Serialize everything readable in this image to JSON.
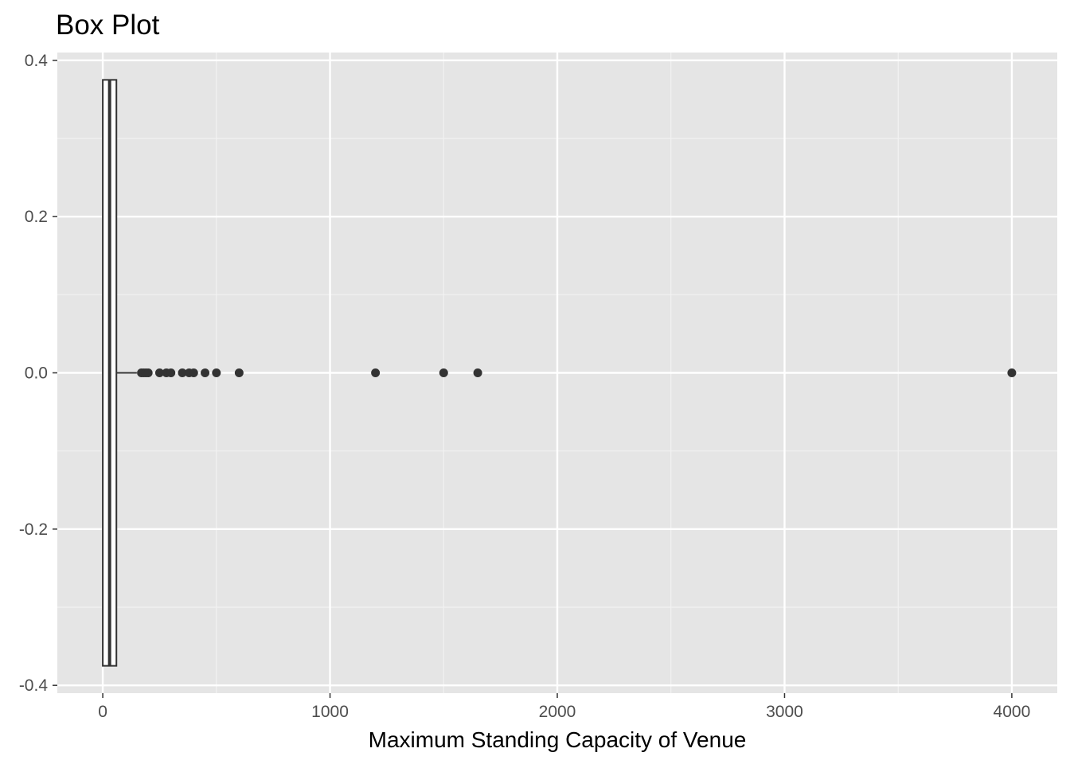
{
  "chart_data": {
    "type": "box",
    "title": "Box Plot",
    "xlabel": "Maximum Standing Capacity of Venue",
    "ylabel": "",
    "orientation": "horizontal",
    "xlim": [
      -200,
      4200
    ],
    "ylim": [
      -0.41,
      0.41
    ],
    "x_ticks": [
      0,
      1000,
      2000,
      3000,
      4000
    ],
    "x_tick_labels": [
      "0",
      "1000",
      "2000",
      "3000",
      "4000"
    ],
    "y_ticks": [
      -0.4,
      -0.2,
      0.0,
      0.2,
      0.4
    ],
    "y_tick_labels": [
      "-0.4",
      "-0.2",
      "0.0",
      "0.2",
      "0.4"
    ],
    "grid": true,
    "box": {
      "q1": 0,
      "median": 30,
      "q3": 60,
      "whisker_low": 0,
      "whisker_high": 150,
      "box_ymin": -0.375,
      "box_ymax": 0.375
    },
    "outliers": [
      170,
      180,
      190,
      200,
      250,
      280,
      300,
      350,
      380,
      400,
      450,
      500,
      600,
      1200,
      1500,
      1650,
      4000
    ],
    "colors": {
      "panel": "#e5e5e5",
      "grid_major": "#ffffff",
      "grid_minor": "#f2f2f2",
      "box_fill": "#ffffff",
      "box_stroke": "#333333",
      "point": "#333333"
    }
  }
}
